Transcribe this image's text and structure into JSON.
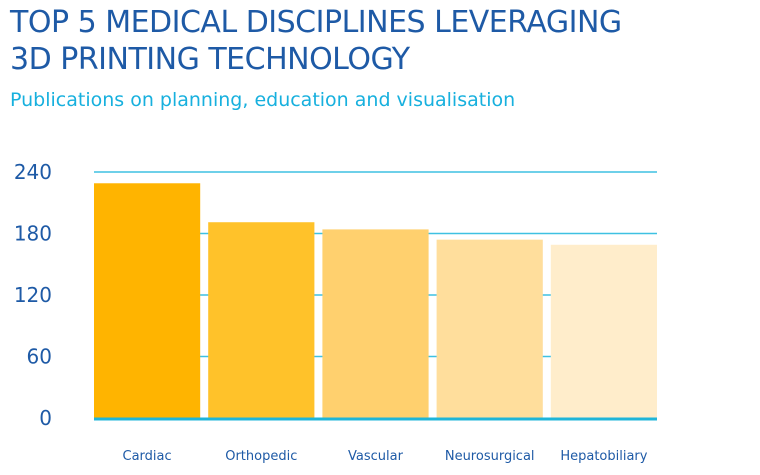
{
  "chart_data": {
    "type": "bar",
    "title": "TOP 5 MEDICAL DISCIPLINES LEVERAGING 3D PRINTING TECHNOLOGY",
    "title_lines": [
      "TOP 5 MEDICAL DISCIPLINES LEVERAGING",
      "3D PRINTING TECHNOLOGY"
    ],
    "subtitle": "Publications on planning, education and visualisation",
    "categories": [
      "Cardiac",
      "Orthopedic",
      "Vascular",
      "Neurosurgical",
      "Hepatobiliary"
    ],
    "values": [
      229,
      191,
      184,
      174,
      169
    ],
    "bar_colors": [
      "#FFB400",
      "#FFC22A",
      "#FFD06E",
      "#FFDE9C",
      "#FFEDCB"
    ],
    "ylim": [
      0,
      240
    ],
    "yticks": [
      0,
      60,
      120,
      180,
      240
    ],
    "xlabel": "",
    "ylabel": "",
    "grid": true,
    "grid_color": "#3EC1E2",
    "title_color": "#1E5AA6",
    "subtitle_color": "#17B0DE"
  }
}
